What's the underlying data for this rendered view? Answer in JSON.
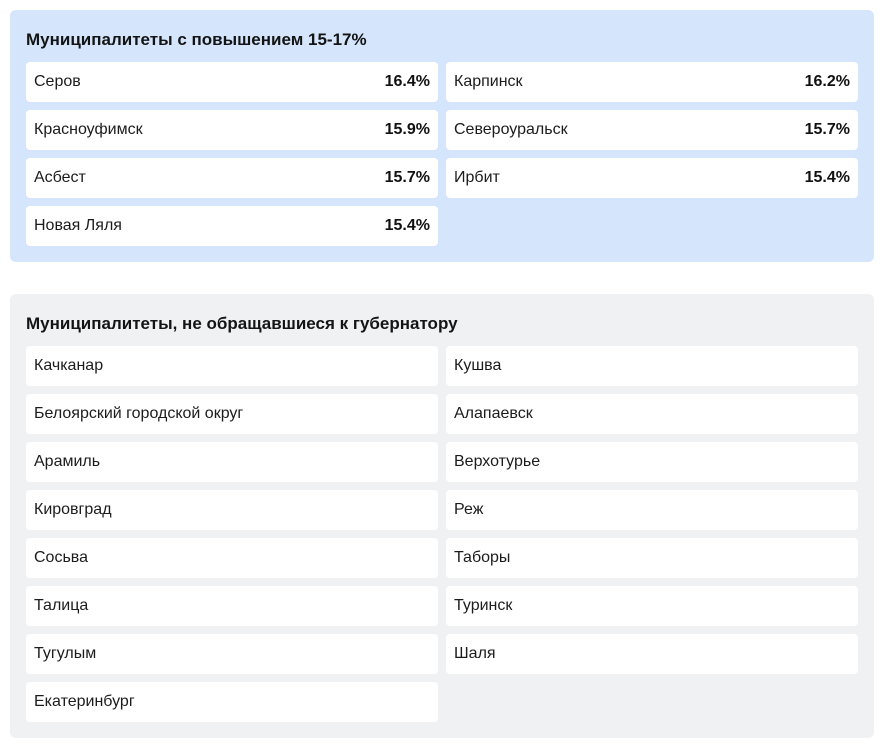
{
  "increase_section": {
    "title": "Муниципалитеты с повышением 15-17%",
    "items": [
      {
        "name": "Серов",
        "value": "16.4%"
      },
      {
        "name": "Карпинск",
        "value": "16.2%"
      },
      {
        "name": "Красноуфимск",
        "value": "15.9%"
      },
      {
        "name": "Североуральск",
        "value": "15.7%"
      },
      {
        "name": "Асбест",
        "value": "15.7%"
      },
      {
        "name": "Ирбит",
        "value": "15.4%"
      },
      {
        "name": "Новая Ляля",
        "value": "15.4%"
      }
    ]
  },
  "no_request_section": {
    "title": "Муниципалитеты, не обращавшиеся к губернатору",
    "items": [
      {
        "name": "Качканар"
      },
      {
        "name": "Кушва"
      },
      {
        "name": "Белоярский городской округ"
      },
      {
        "name": "Алапаевск"
      },
      {
        "name": "Арамиль"
      },
      {
        "name": "Верхотурье"
      },
      {
        "name": "Кировград"
      },
      {
        "name": "Реж"
      },
      {
        "name": "Сосьва"
      },
      {
        "name": "Таборы"
      },
      {
        "name": "Талица"
      },
      {
        "name": "Туринск"
      },
      {
        "name": "Тугулым"
      },
      {
        "name": "Шаля"
      },
      {
        "name": "Екатеринбург"
      }
    ]
  },
  "colors": {
    "increase_panel_bg": "#d5e5fc",
    "no_request_panel_bg": "#f0f1f3",
    "card_bg": "#ffffff"
  }
}
